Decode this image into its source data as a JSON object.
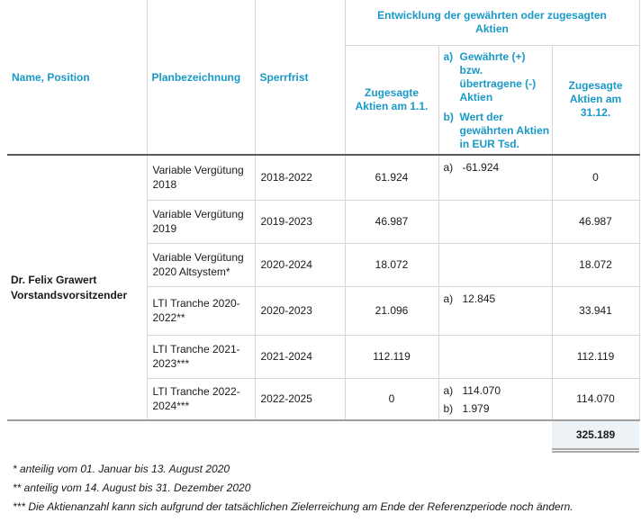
{
  "accent_color": "#1999C7",
  "shade_color": "#ecf2f5",
  "header": {
    "name_position": "Name, Position",
    "planbezeichnung": "Planbezeichnung",
    "sperrfrist": "Sperrfrist",
    "group_lines": [
      "Entwicklung der gewährten oder zugesagten",
      "Aktien"
    ],
    "col_start_lines": [
      "Zugesagte",
      "Aktien am 1.1."
    ],
    "col_change": {
      "a_label": "a)",
      "a_lines": [
        "Gewährte (+)",
        "bzw.",
        "übertragene (-)",
        "Aktien"
      ],
      "b_label": "b)",
      "b_lines": [
        "Wert der",
        "gewährten Aktien",
        "in EUR Tsd."
      ]
    },
    "col_end_lines": [
      "Zugesagte",
      "Aktien am",
      "31.12."
    ]
  },
  "person": {
    "name": "Dr. Felix Grawert",
    "title": "Vorstandsvorsitzender"
  },
  "rows": [
    {
      "plan": "Variable Vergütung 2018",
      "sperrfrist": "2018-2022",
      "start": "61.924",
      "a_label": "a)",
      "a": "-61.924",
      "b_label": "",
      "b": "",
      "end": "0"
    },
    {
      "plan": "Variable Vergütung 2019",
      "sperrfrist": "2019-2023",
      "start": "46.987",
      "a_label": "",
      "a": "",
      "b_label": "",
      "b": "",
      "end": "46.987"
    },
    {
      "plan": "Variable Vergütung 2020 Altsystem*",
      "sperrfrist": "2020-2024",
      "start": "18.072",
      "a_label": "",
      "a": "",
      "b_label": "",
      "b": "",
      "end": "18.072"
    },
    {
      "plan": "LTI Tranche 2020-2022**",
      "sperrfrist": "2020-2023",
      "start": "21.096",
      "a_label": "a)",
      "a": "12.845",
      "b_label": "",
      "b": "",
      "end": "33.941"
    },
    {
      "plan": "LTI Tranche 2021-2023***",
      "sperrfrist": "2021-2024",
      "start": "112.119",
      "a_label": "",
      "a": "",
      "b_label": "",
      "b": "",
      "end": "112.119"
    },
    {
      "plan": "LTI Tranche 2022-2024***",
      "sperrfrist": "2022-2025",
      "start": "0",
      "a_label": "a)",
      "a": "114.070",
      "b_label": "b)",
      "b": "1.979",
      "end": "114.070"
    }
  ],
  "total": {
    "end": "325.189"
  },
  "footnotes": [
    "* anteilig vom 01. Januar bis 13. August 2020",
    "** anteilig vom 14. August bis 31. Dezember 2020",
    "*** Die Aktienanzahl kann sich aufgrund der tatsächlichen Zielerreichung am Ende der Referenzperiode noch ändern."
  ]
}
